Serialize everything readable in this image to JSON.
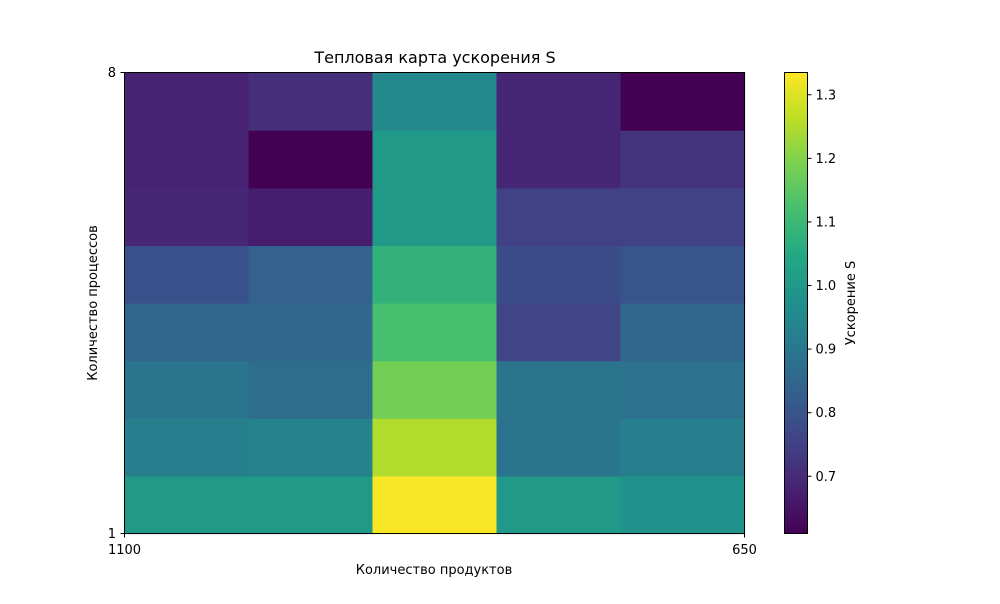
{
  "chart_data": {
    "type": "heatmap",
    "title": "Тепловая карта ускорения S",
    "xlabel": "Количество продуктов",
    "ylabel": "Количество процессов",
    "x_tick_labels": [
      "1100",
      "650"
    ],
    "y_tick_labels": [
      "1",
      "8"
    ],
    "rows_bottom_to_top": [
      [
        1.0,
        1.0,
        1.33,
        1.0,
        0.98
      ],
      [
        0.92,
        0.93,
        1.25,
        0.89,
        0.92
      ],
      [
        0.89,
        0.87,
        1.18,
        0.89,
        0.88
      ],
      [
        0.85,
        0.85,
        1.12,
        0.76,
        0.85
      ],
      [
        0.79,
        0.84,
        1.08,
        0.78,
        0.8
      ],
      [
        0.69,
        0.67,
        1.0,
        0.75,
        0.75
      ],
      [
        0.68,
        0.61,
        1.0,
        0.69,
        0.72
      ],
      [
        0.68,
        0.71,
        0.95,
        0.69,
        0.61
      ]
    ],
    "colorbar": {
      "label": "Ускорение S",
      "vmin": 0.61,
      "vmax": 1.335,
      "ticks": [
        "0.7",
        "0.8",
        "0.9",
        "1.0",
        "1.1",
        "1.2",
        "1.3"
      ],
      "colormap": "viridis"
    },
    "grid": false,
    "legend": "none"
  }
}
